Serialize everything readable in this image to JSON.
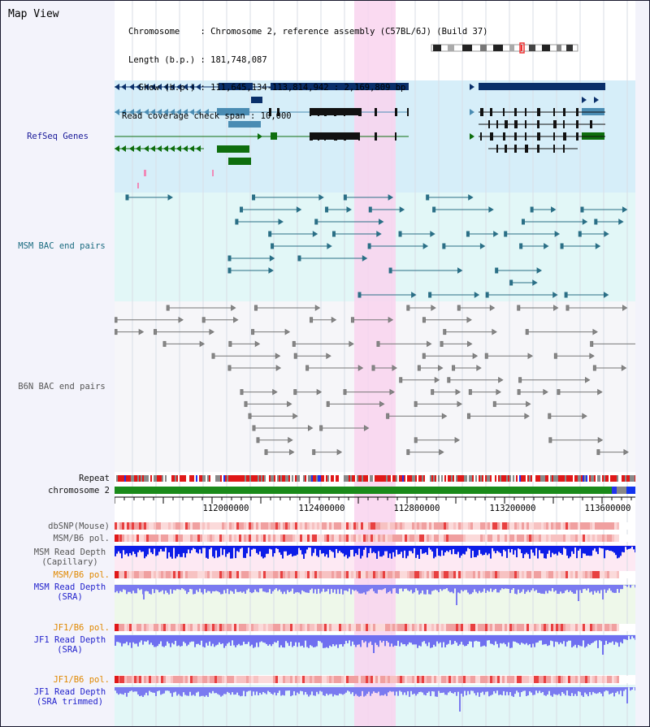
{
  "app": {
    "title": "Map View"
  },
  "header": {
    "chromosome": "Chromosome    : Chromosome 2, reference assembly (C57BL/6J) (Build 37)",
    "length": "Length (b.p.) : 181,748,087",
    "show": "  Show (b.p.) : 111,645,134-113,814,942 : 2,169,809 bp",
    "coverage": "Read coverage check span : 10,000"
  },
  "tracks": {
    "refseq": "RefSeq Genes",
    "msm_bac": "MSM BAC end pairs",
    "b6n_bac": "B6N BAC end pairs",
    "repeat": "Repeat",
    "chromosome": "chromosome 2",
    "dbsnp": "dbSNP(Mouse)",
    "msm_b6_pol_1": "MSM/B6 pol.",
    "msm_read_depth_cap": "MSM Read Depth\n(Capillary)",
    "msm_b6_pol_2": "MSM/B6 pol.",
    "msm_read_depth_sra": "MSM Read Depth\n(SRA)",
    "jf1_b6_pol_1": "JF1/B6 pol.",
    "jf1_read_depth_sra": "JF1 Read Depth\n(SRA)",
    "jf1_b6_pol_2": "JF1/B6 pol.",
    "jf1_read_depth_trim": "JF1 Read Depth\n(SRA trimmed)"
  },
  "axis": {
    "ticks": [
      "112000000",
      "112400000",
      "112800000",
      "113200000",
      "113600000"
    ]
  },
  "colors": {
    "highlight": "#f9d4ef",
    "refseq_bg": "#d6eef9",
    "msm_bg": "#e2f7f7",
    "navy": "#0a2f6a",
    "steel": "#4a8cb3",
    "green": "#0e6e0e",
    "teal": "#2a6f86",
    "grey": "#777777",
    "label_navy": "#1a1a99",
    "label_teal": "#1a6b80",
    "label_grey": "#555555",
    "label_orange": "#e08800",
    "label_blue": "#2222cc"
  }
}
